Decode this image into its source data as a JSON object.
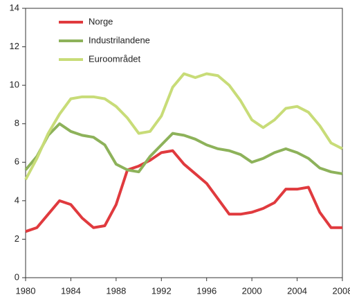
{
  "chart_data": {
    "type": "line",
    "x": [
      1980,
      1981,
      1982,
      1983,
      1984,
      1985,
      1986,
      1987,
      1988,
      1989,
      1990,
      1991,
      1992,
      1993,
      1994,
      1995,
      1996,
      1997,
      1998,
      1999,
      2000,
      2001,
      2002,
      2003,
      2004,
      2005,
      2006,
      2007,
      2008
    ],
    "series": [
      {
        "name": "Norge",
        "color": "#e03a3e",
        "values": [
          2.4,
          2.6,
          3.3,
          4.0,
          3.8,
          3.1,
          2.6,
          2.7,
          3.8,
          5.6,
          5.8,
          6.1,
          6.5,
          6.6,
          5.9,
          5.4,
          4.9,
          4.1,
          3.3,
          3.3,
          3.4,
          3.6,
          3.9,
          4.6,
          4.6,
          4.7,
          3.4,
          2.6,
          2.6
        ]
      },
      {
        "name": "Industrilandene",
        "color": "#8db25a",
        "values": [
          5.6,
          6.3,
          7.4,
          8.0,
          7.6,
          7.4,
          7.3,
          6.9,
          5.9,
          5.6,
          5.5,
          6.3,
          6.9,
          7.5,
          7.4,
          7.2,
          6.9,
          6.7,
          6.6,
          6.4,
          6.0,
          6.2,
          6.5,
          6.7,
          6.5,
          6.2,
          5.7,
          5.5,
          5.4
        ]
      },
      {
        "name": "Euroområdet",
        "color": "#c8dc78",
        "values": [
          5.1,
          6.2,
          7.5,
          8.5,
          9.3,
          9.4,
          9.4,
          9.3,
          8.9,
          8.3,
          7.5,
          7.6,
          8.4,
          9.9,
          10.6,
          10.4,
          10.6,
          10.5,
          10.0,
          9.2,
          8.2,
          7.8,
          8.2,
          8.8,
          8.9,
          8.6,
          7.9,
          7.0,
          6.7
        ]
      }
    ],
    "xlim": [
      1980,
      2008
    ],
    "xticks": [
      1980,
      1984,
      1988,
      1992,
      1996,
      2000,
      2004,
      2008
    ],
    "ylim": [
      0,
      14
    ],
    "yticks": [
      0,
      2,
      4,
      6,
      8,
      10,
      12,
      14
    ],
    "legend": "upper left"
  }
}
